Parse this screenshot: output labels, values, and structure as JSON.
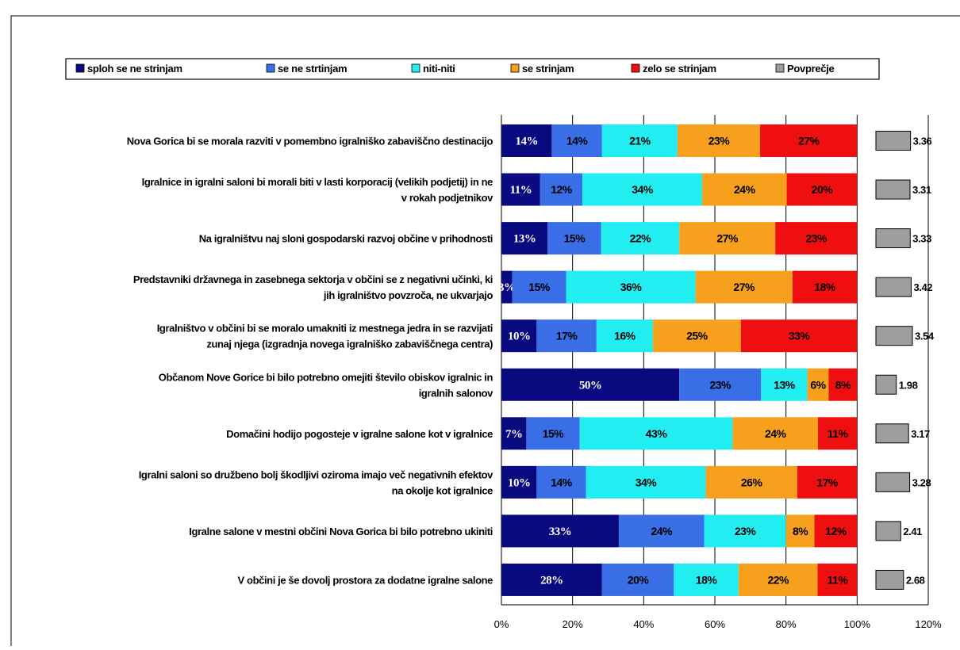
{
  "chart_data": {
    "type": "bar",
    "orientation": "horizontal",
    "stacked": "percent",
    "categories": [
      "Nova Gorica bi se morala razviti v pomembno igralniško zabaviščno destinacijo",
      "Igralnice in igralni saloni bi morali biti v lasti korporacij (velikih podjetij) in ne v rokah podjetnikov",
      "Na igralništvu naj sloni gospodarski razvoj občine v prihodnosti",
      "Predstavniki državnega in zasebnega sektorja v občini se z negativni učinki, ki jih igralništvo povzroča, ne ukvarjajo",
      "Igralništvo v občini bi se moralo umakniti iz mestnega jedra in se razvijati zunaj njega (izgradnja novega igralniško zabaviščnega centra)",
      "Občanom Nove Gorice bi bilo potrebno omejiti število obiskov igralnic in igralnih salonov",
      "Domačini hodijo pogosteje v igralne salone kot v igralnice",
      "Igralni saloni so družbeno bolj škodljivi oziroma imajo več negativnih efektov na okolje kot igralnice",
      "Igralne salone v mestni občini Nova Gorica bi bilo potrebno ukiniti",
      "V občini je še dovolj prostora za dodatne igralne salone"
    ],
    "category_lines": [
      [
        "Nova Gorica bi se morala razviti v pomembno igralniško zabaviščno destinacijo"
      ],
      [
        "Igralnice in igralni saloni bi morali biti v lasti korporacij (velikih podjetij) in ne",
        "v rokah podjetnikov"
      ],
      [
        "Na igralništvu naj sloni gospodarski razvoj občine v prihodnosti"
      ],
      [
        "Predstavniki državnega in zasebnega sektorja v občini se z negativni učinki, ki",
        "jih igralništvo povzroča, ne ukvarjajo"
      ],
      [
        "Igralništvo v občini bi se moralo umakniti iz mestnega jedra in se razvijati",
        "zunaj njega (izgradnja novega igralniško zabaviščnega centra)"
      ],
      [
        "Občanom Nove Gorice bi bilo potrebno omejiti število obiskov igralnic in",
        "igralnih salonov"
      ],
      [
        "Domačini hodijo pogosteje v igralne salone kot v igralnice"
      ],
      [
        "Igralni saloni so družbeno bolj škodljivi oziroma imajo več negativnih efektov",
        "na okolje kot igralnice"
      ],
      [
        "Igralne salone v mestni občini Nova Gorica bi bilo potrebno ukiniti"
      ],
      [
        "V občini je še dovolj prostora za dodatne igralne salone"
      ]
    ],
    "series": [
      {
        "name": "sploh se ne strinjam",
        "color": "#0a0a80",
        "values": [
          14,
          11,
          13,
          3,
          10,
          50,
          7,
          10,
          33,
          28
        ],
        "labels": [
          "14%",
          "11%",
          "13%",
          "3%",
          "10%",
          "50%",
          "7%",
          "10%",
          "33%",
          "28%"
        ]
      },
      {
        "name": "se ne strtinjam",
        "color": "#3a6ee6",
        "values": [
          14,
          12,
          15,
          15,
          17,
          23,
          15,
          14,
          24,
          20
        ],
        "labels": [
          "14%",
          "12%",
          "15%",
          "15%",
          "17%",
          "23%",
          "15%",
          "14%",
          "24%",
          "20%"
        ]
      },
      {
        "name": "niti-niti",
        "color": "#22eef2",
        "values": [
          21,
          34,
          22,
          36,
          16,
          13,
          43,
          34,
          23,
          18
        ],
        "labels": [
          "21%",
          "34%",
          "22%",
          "36%",
          "16%",
          "13%",
          "43%",
          "34%",
          "23%",
          "18%"
        ]
      },
      {
        "name": "se strinjam",
        "color": "#f7a01d",
        "values": [
          23,
          24,
          27,
          27,
          25,
          6,
          24,
          26,
          8,
          22
        ],
        "labels": [
          "23%",
          "24%",
          "27%",
          "27%",
          "25%",
          "6%",
          "24%",
          "26%",
          "8%",
          "22%"
        ]
      },
      {
        "name": "zelo se strinjam",
        "color": "#ef0f10",
        "values": [
          27,
          20,
          23,
          18,
          33,
          8,
          11,
          17,
          12,
          11
        ],
        "labels": [
          "27%",
          "20%",
          "23%",
          "18%",
          "33%",
          "8%",
          "11%",
          "17%",
          "12%",
          "11%"
        ]
      }
    ],
    "average": {
      "name": "Povprečje",
      "color": "#9e9e9e",
      "values": [
        3.36,
        3.31,
        3.33,
        3.42,
        3.54,
        1.98,
        3.17,
        3.28,
        2.41,
        2.68
      ],
      "labels": [
        "3.36",
        "3.31",
        "3.33",
        "3.42",
        "3.54",
        "1.98",
        "3.17",
        "3.28",
        "2.41",
        "2.68"
      ]
    },
    "xlim": [
      0,
      120
    ],
    "x_ticks": [
      "0%",
      "20%",
      "40%",
      "60%",
      "80%",
      "100%",
      "120%"
    ],
    "grid": "vertical",
    "legend": "top"
  }
}
